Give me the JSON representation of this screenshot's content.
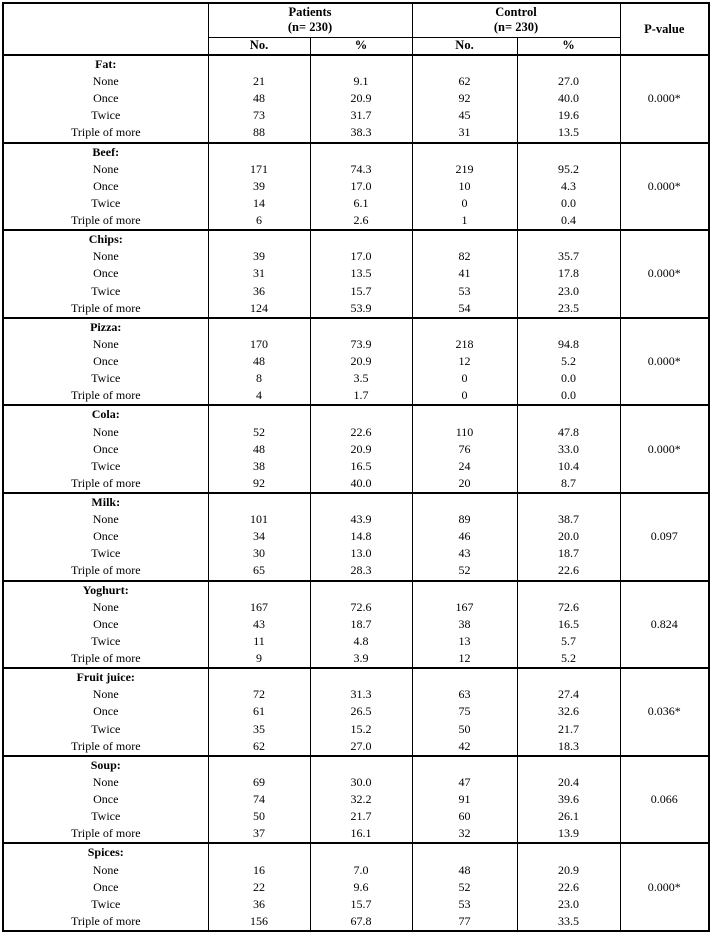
{
  "table": {
    "header": {
      "groups": [
        {
          "title": "Patients",
          "subtitle": "(n= 230)"
        },
        {
          "title": "Control",
          "subtitle": "(n= 230)"
        }
      ],
      "pvalue": "P-value",
      "subcols": [
        "No.",
        "%",
        "No.",
        "%"
      ]
    },
    "groups": [
      {
        "label": "Fat:",
        "p_value": "0.000*",
        "rows": [
          {
            "label": "None",
            "patients_no": "21",
            "patients_pct": "9.1",
            "control_no": "62",
            "control_pct": "27.0"
          },
          {
            "label": "Once",
            "patients_no": "48",
            "patients_pct": "20.9",
            "control_no": "92",
            "control_pct": "40.0"
          },
          {
            "label": "Twice",
            "patients_no": "73",
            "patients_pct": "31.7",
            "control_no": "45",
            "control_pct": "19.6"
          },
          {
            "label": "Triple of more",
            "patients_no": "88",
            "patients_pct": "38.3",
            "control_no": "31",
            "control_pct": "13.5"
          }
        ]
      },
      {
        "label": "Beef:",
        "p_value": "0.000*",
        "rows": [
          {
            "label": "None",
            "patients_no": "171",
            "patients_pct": "74.3",
            "control_no": "219",
            "control_pct": "95.2"
          },
          {
            "label": "Once",
            "patients_no": "39",
            "patients_pct": "17.0",
            "control_no": "10",
            "control_pct": "4.3"
          },
          {
            "label": "Twice",
            "patients_no": "14",
            "patients_pct": "6.1",
            "control_no": "0",
            "control_pct": "0.0"
          },
          {
            "label": "Triple of more",
            "patients_no": "6",
            "patients_pct": "2.6",
            "control_no": "1",
            "control_pct": "0.4"
          }
        ]
      },
      {
        "label": "Chips:",
        "p_value": "0.000*",
        "rows": [
          {
            "label": "None",
            "patients_no": "39",
            "patients_pct": "17.0",
            "control_no": "82",
            "control_pct": "35.7"
          },
          {
            "label": "Once",
            "patients_no": "31",
            "patients_pct": "13.5",
            "control_no": "41",
            "control_pct": "17.8"
          },
          {
            "label": "Twice",
            "patients_no": "36",
            "patients_pct": "15.7",
            "control_no": "53",
            "control_pct": "23.0"
          },
          {
            "label": "Triple of more",
            "patients_no": "124",
            "patients_pct": "53.9",
            "control_no": "54",
            "control_pct": "23.5"
          }
        ]
      },
      {
        "label": "Pizza:",
        "p_value": "0.000*",
        "rows": [
          {
            "label": "None",
            "patients_no": "170",
            "patients_pct": "73.9",
            "control_no": "218",
            "control_pct": "94.8"
          },
          {
            "label": "Once",
            "patients_no": "48",
            "patients_pct": "20.9",
            "control_no": "12",
            "control_pct": "5.2"
          },
          {
            "label": "Twice",
            "patients_no": "8",
            "patients_pct": "3.5",
            "control_no": "0",
            "control_pct": "0.0"
          },
          {
            "label": "Triple of more",
            "patients_no": "4",
            "patients_pct": "1.7",
            "control_no": "0",
            "control_pct": "0.0"
          }
        ]
      },
      {
        "label": "Cola:",
        "p_value": "0.000*",
        "rows": [
          {
            "label": "None",
            "patients_no": "52",
            "patients_pct": "22.6",
            "control_no": "110",
            "control_pct": "47.8"
          },
          {
            "label": "Once",
            "patients_no": "48",
            "patients_pct": "20.9",
            "control_no": "76",
            "control_pct": "33.0"
          },
          {
            "label": "Twice",
            "patients_no": "38",
            "patients_pct": "16.5",
            "control_no": "24",
            "control_pct": "10.4"
          },
          {
            "label": "Triple of more",
            "patients_no": "92",
            "patients_pct": "40.0",
            "control_no": "20",
            "control_pct": "8.7"
          }
        ]
      },
      {
        "label": "Milk:",
        "p_value": "0.097",
        "rows": [
          {
            "label": "None",
            "patients_no": "101",
            "patients_pct": "43.9",
            "control_no": "89",
            "control_pct": "38.7"
          },
          {
            "label": "Once",
            "patients_no": "34",
            "patients_pct": "14.8",
            "control_no": "46",
            "control_pct": "20.0"
          },
          {
            "label": "Twice",
            "patients_no": "30",
            "patients_pct": "13.0",
            "control_no": "43",
            "control_pct": "18.7"
          },
          {
            "label": "Triple of more",
            "patients_no": "65",
            "patients_pct": "28.3",
            "control_no": "52",
            "control_pct": "22.6"
          }
        ]
      },
      {
        "label": "Yoghurt:",
        "p_value": "0.824",
        "rows": [
          {
            "label": "None",
            "patients_no": "167",
            "patients_pct": "72.6",
            "control_no": "167",
            "control_pct": "72.6"
          },
          {
            "label": "Once",
            "patients_no": "43",
            "patients_pct": "18.7",
            "control_no": "38",
            "control_pct": "16.5"
          },
          {
            "label": "Twice",
            "patients_no": "11",
            "patients_pct": "4.8",
            "control_no": "13",
            "control_pct": "5.7"
          },
          {
            "label": "Triple of more",
            "patients_no": "9",
            "patients_pct": "3.9",
            "control_no": "12",
            "control_pct": "5.2"
          }
        ]
      },
      {
        "label": "Fruit juice:",
        "p_value": "0.036*",
        "rows": [
          {
            "label": "None",
            "patients_no": "72",
            "patients_pct": "31.3",
            "control_no": "63",
            "control_pct": "27.4"
          },
          {
            "label": "Once",
            "patients_no": "61",
            "patients_pct": "26.5",
            "control_no": "75",
            "control_pct": "32.6"
          },
          {
            "label": "Twice",
            "patients_no": "35",
            "patients_pct": "15.2",
            "control_no": "50",
            "control_pct": "21.7"
          },
          {
            "label": "Triple of more",
            "patients_no": "62",
            "patients_pct": "27.0",
            "control_no": "42",
            "control_pct": "18.3"
          }
        ]
      },
      {
        "label": "Soup:",
        "p_value": "0.066",
        "rows": [
          {
            "label": "None",
            "patients_no": "69",
            "patients_pct": "30.0",
            "control_no": "47",
            "control_pct": "20.4"
          },
          {
            "label": "Once",
            "patients_no": "74",
            "patients_pct": "32.2",
            "control_no": "91",
            "control_pct": "39.6"
          },
          {
            "label": "Twice",
            "patients_no": "50",
            "patients_pct": "21.7",
            "control_no": "60",
            "control_pct": "26.1"
          },
          {
            "label": "Triple of more",
            "patients_no": "37",
            "patients_pct": "16.1",
            "control_no": "32",
            "control_pct": "13.9"
          }
        ]
      },
      {
        "label": "Spices:",
        "p_value": "0.000*",
        "rows": [
          {
            "label": "None",
            "patients_no": "16",
            "patients_pct": "7.0",
            "control_no": "48",
            "control_pct": "20.9"
          },
          {
            "label": "Once",
            "patients_no": "22",
            "patients_pct": "9.6",
            "control_no": "52",
            "control_pct": "22.6"
          },
          {
            "label": "Twice",
            "patients_no": "36",
            "patients_pct": "15.7",
            "control_no": "53",
            "control_pct": "23.0"
          },
          {
            "label": "Triple of more",
            "patients_no": "156",
            "patients_pct": "67.8",
            "control_no": "77",
            "control_pct": "33.5"
          }
        ]
      }
    ]
  }
}
